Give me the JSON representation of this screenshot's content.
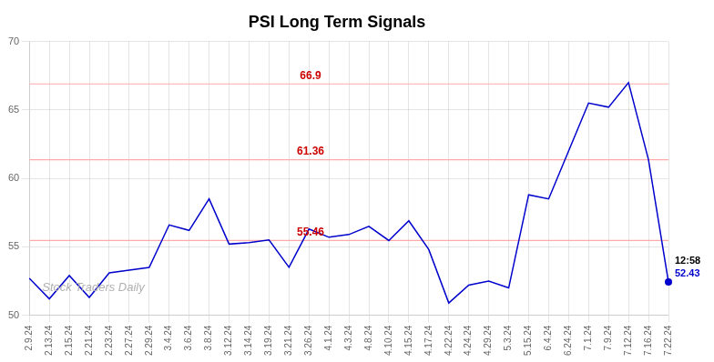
{
  "chart_data": {
    "type": "line",
    "title": "PSI Long Term Signals",
    "categories": [
      "2.9.24",
      "2.13.24",
      "2.15.24",
      "2.21.24",
      "2.23.24",
      "2.27.24",
      "2.29.24",
      "3.4.24",
      "3.6.24",
      "3.8.24",
      "3.12.24",
      "3.14.24",
      "3.19.24",
      "3.21.24",
      "3.26.24",
      "4.1.24",
      "4.3.24",
      "4.8.24",
      "4.10.24",
      "4.15.24",
      "4.17.24",
      "4.22.24",
      "4.24.24",
      "4.29.24",
      "5.3.24",
      "5.15.24",
      "6.4.24",
      "6.24.24",
      "7.1.24",
      "7.9.24",
      "7.12.24",
      "7.16.24",
      "7.22.24"
    ],
    "values": [
      52.7,
      51.2,
      52.9,
      51.3,
      53.1,
      53.3,
      53.5,
      56.6,
      56.2,
      58.5,
      55.2,
      55.3,
      55.5,
      53.5,
      56.3,
      55.7,
      55.9,
      56.5,
      55.46,
      56.9,
      54.8,
      50.9,
      52.2,
      52.5,
      52.0,
      58.8,
      58.5,
      62.0,
      65.5,
      65.2,
      67.0,
      61.36,
      52.43
    ],
    "color": "#0000cc",
    "ylim": [
      50,
      70
    ],
    "yticks": [
      50,
      55,
      60,
      65,
      70
    ],
    "grid": true,
    "annotations": [
      {
        "type": "hline",
        "y": 55.46,
        "text": "55.46",
        "line_color": "#ffaaaa",
        "color": "#cc0000"
      },
      {
        "type": "hline",
        "y": 61.36,
        "text": "61.36",
        "line_color": "#ffaaaa",
        "color": "#cc0000"
      },
      {
        "type": "hline",
        "y": 66.9,
        "text": "66.9",
        "line_color": "#ffaaaa",
        "color": "#cc0000"
      },
      {
        "type": "point",
        "x": "7.22.24",
        "y": 52.43,
        "title": "12:58",
        "text": "52.43",
        "color": "#0000cc"
      },
      {
        "type": "watermark",
        "text": "Stock Traders Daily",
        "color": "#b0b0b0"
      }
    ]
  }
}
